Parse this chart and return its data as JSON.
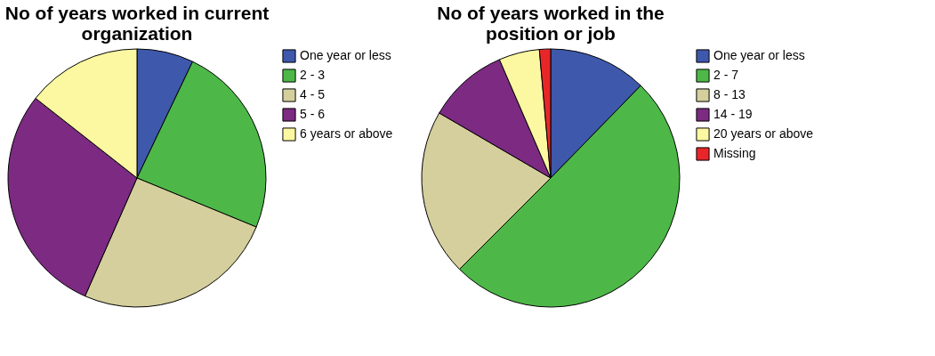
{
  "chart_data": [
    {
      "type": "pie",
      "title": "No of years worked in current organization",
      "categories": [
        "One year or less",
        "2 - 3",
        "4 - 5",
        "5 - 6",
        "6 years or above"
      ],
      "values": [
        7.1,
        24.1,
        25.4,
        29.0,
        14.4
      ],
      "colors": [
        "#3e58ac",
        "#4db848",
        "#d4cf9c",
        "#7c2a82",
        "#fbf8a1"
      ],
      "legend": "right"
    },
    {
      "type": "pie",
      "title": "No of years worked in the position or job",
      "categories": [
        "One year or less",
        "2 - 7",
        "8 - 13",
        "14 - 19",
        "20 years or above",
        "Missing"
      ],
      "values": [
        12.3,
        50.2,
        20.9,
        10.1,
        5.1,
        1.4
      ],
      "colors": [
        "#3e58ac",
        "#4db848",
        "#d4cf9c",
        "#7c2a82",
        "#fbf8a1",
        "#e8262a"
      ],
      "legend": "right"
    }
  ]
}
